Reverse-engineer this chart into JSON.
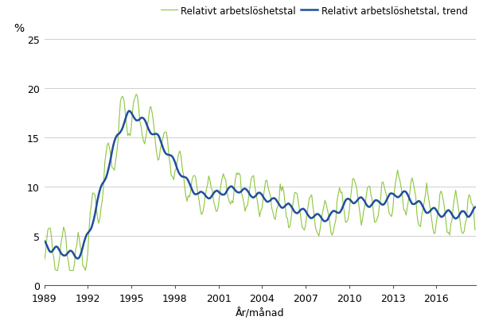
{
  "xlabel": "År/månad",
  "ylabel_text": "%",
  "legend_labels": [
    "Relativt arbetslöshetstal",
    "Relativt arbetslöshetstal, trend"
  ],
  "line_color_raw": "#8dc63f",
  "line_color_trend": "#1f4e9e",
  "ylim": [
    0,
    25
  ],
  "yticks": [
    0,
    5,
    10,
    15,
    20,
    25
  ],
  "xticks": [
    1989,
    1992,
    1995,
    1998,
    2001,
    2004,
    2007,
    2010,
    2013,
    2016
  ],
  "background_color": "#ffffff",
  "grid_color": "#c8c8c8"
}
